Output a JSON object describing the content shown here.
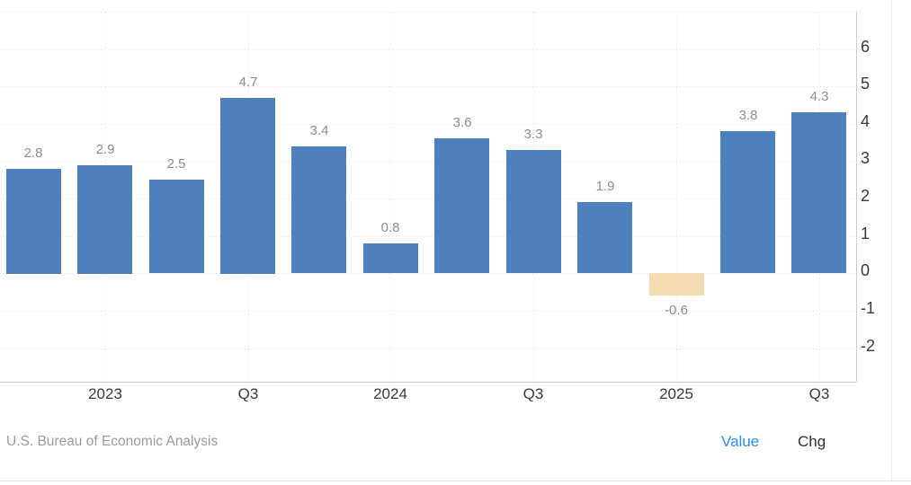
{
  "chart_data": {
    "type": "bar",
    "title": "",
    "xlabel": "",
    "ylabel": "",
    "values": [
      2.8,
      2.9,
      2.5,
      4.7,
      3.4,
      0.8,
      3.6,
      3.3,
      1.9,
      -0.6,
      3.8,
      4.3
    ],
    "bar_labels": [
      "2.8",
      "2.9",
      "2.5",
      "4.7",
      "3.4",
      "0.8",
      "3.6",
      "3.3",
      "1.9",
      "-0.6",
      "3.8",
      "4.3"
    ],
    "x_tick_labels": [
      "",
      "2023",
      "",
      "Q3",
      "",
      "2024",
      "",
      "Q3",
      "",
      "2025",
      "",
      "Q3"
    ],
    "y_tick_labels": [
      "6",
      "5",
      "4",
      "3",
      "2",
      "1",
      "0",
      "-1",
      "-2"
    ],
    "y_tick_values": [
      6,
      5,
      4,
      3,
      2,
      1,
      0,
      -1,
      -2
    ],
    "ylim": [
      -2.9,
      7.0
    ],
    "grid": true,
    "legend_position": "none",
    "bar_color_positive": "#4e80bd",
    "bar_color_negative": "#f3dcb2",
    "source": "U.S. Bureau of Economic Analysis"
  },
  "footer": {
    "source": "U.S. Bureau of Economic Analysis",
    "value_label": "Value",
    "chg_label": "Chg",
    "value_color": "#2a8ff2",
    "chg_color": "#2f2f2f"
  }
}
